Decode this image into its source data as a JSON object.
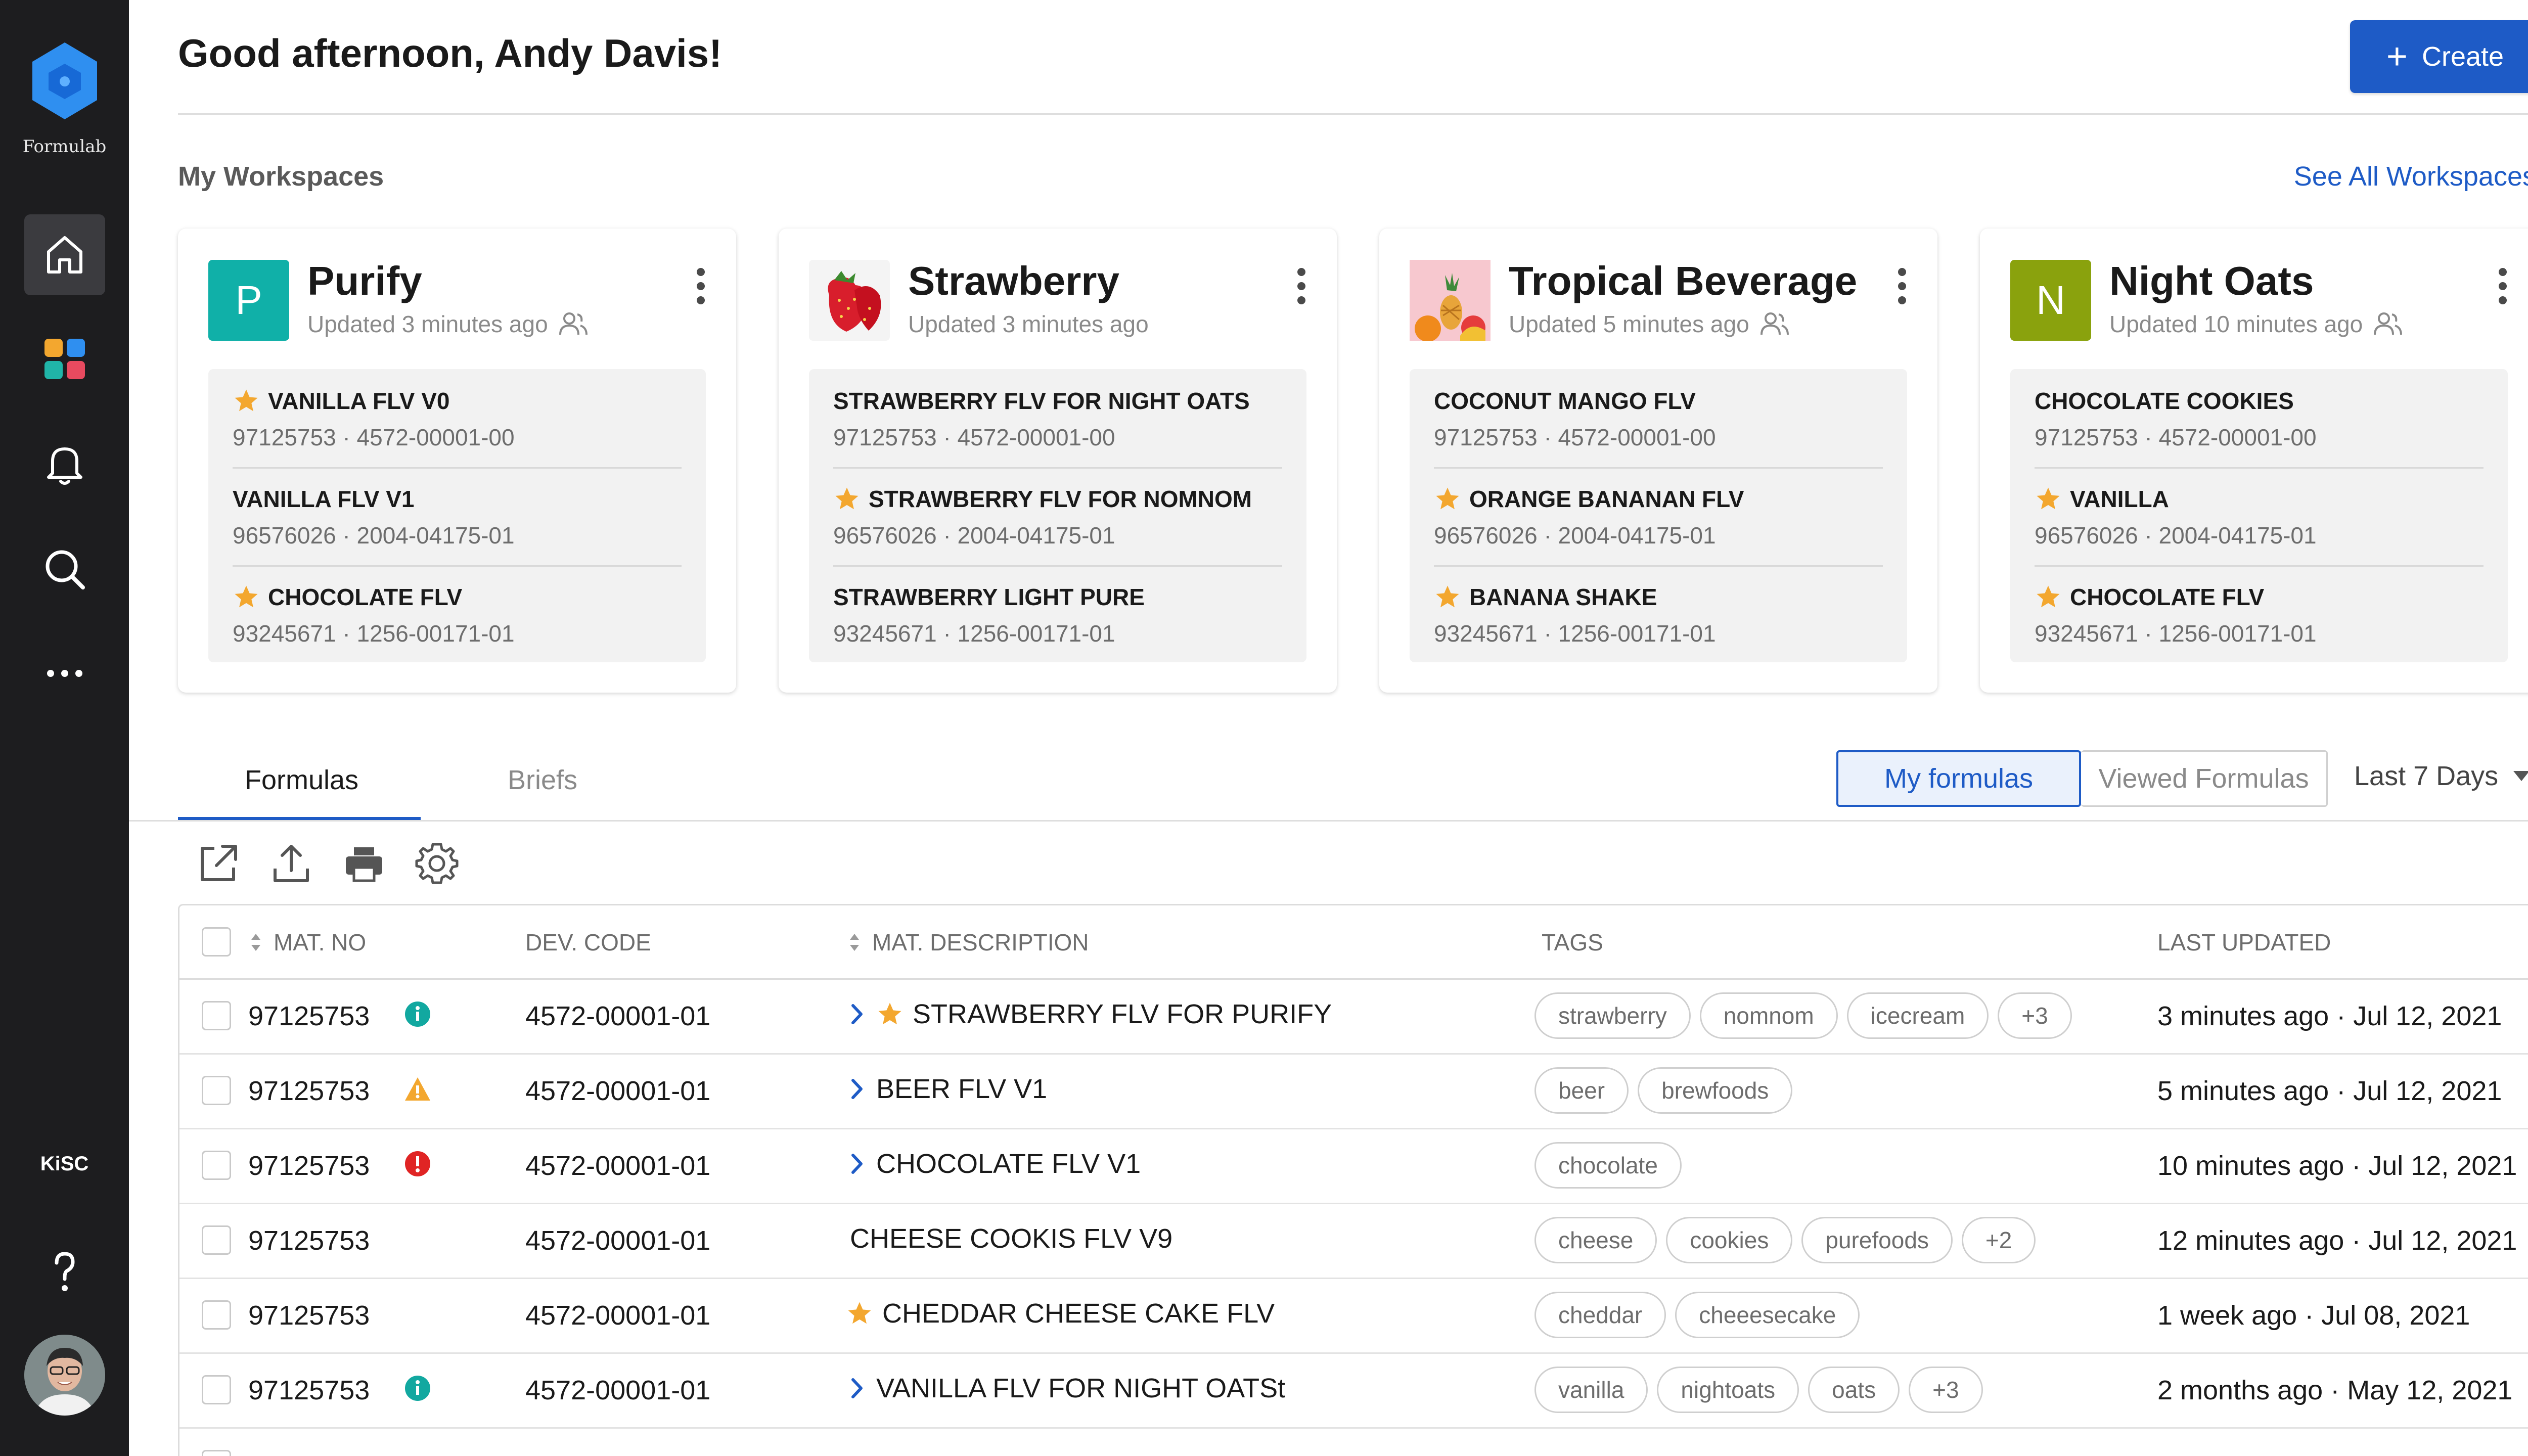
{
  "app": {
    "brand": "Formulab",
    "org": "KiSC",
    "accent": "#1e5bc6",
    "logo_color": "#2f8ff0"
  },
  "sidebar": {
    "items": [
      {
        "icon": "home-icon",
        "active": true
      },
      {
        "icon": "apps-grid-icon"
      },
      {
        "icon": "bell-icon"
      },
      {
        "icon": "search-icon"
      },
      {
        "icon": "more-icon"
      }
    ],
    "bottom": [
      {
        "label": "KiSC"
      },
      {
        "icon": "help-icon"
      },
      {
        "icon": "user-avatar"
      }
    ]
  },
  "header": {
    "greeting": "Good afternoon, Andy Davis!",
    "create_label": "Create"
  },
  "workspaces": {
    "title": "My Workspaces",
    "see_all": "See All Workspaces",
    "cards": [
      {
        "initial": "P",
        "color": "#10b0a8",
        "name": "Purify",
        "updated": "Updated 3 minutes ago",
        "shared": true,
        "items": [
          {
            "starred": true,
            "name": "VANILLA FLV V0",
            "meta": "97125753 · 4572-00001-00"
          },
          {
            "starred": false,
            "name": "VANILLA FLV V1",
            "meta": "96576026 · 2004-04175-01"
          },
          {
            "starred": true,
            "name": "CHOCOLATE FLV",
            "meta": "93245671 · 1256-00171-01"
          }
        ]
      },
      {
        "initial": "",
        "image": "strawberry-image",
        "name": "Strawberry",
        "updated": "Updated 3 minutes ago",
        "shared": false,
        "items": [
          {
            "starred": false,
            "name": "STRAWBERRY FLV FOR NIGHT OATS",
            "meta": "97125753 · 4572-00001-00"
          },
          {
            "starred": true,
            "name": "STRAWBERRY FLV FOR NOMNOM",
            "meta": "96576026 · 2004-04175-01"
          },
          {
            "starred": false,
            "name": "STRAWBERRY LIGHT PURE",
            "meta": "93245671 · 1256-00171-01"
          }
        ]
      },
      {
        "initial": "",
        "image": "tropical-fruit-image",
        "name": "Tropical Beverage",
        "updated": "Updated 5 minutes ago",
        "shared": true,
        "items": [
          {
            "starred": false,
            "name": "COCONUT MANGO FLV",
            "meta": "97125753 · 4572-00001-00"
          },
          {
            "starred": true,
            "name": "ORANGE BANANAN FLV",
            "meta": "96576026 · 2004-04175-01"
          },
          {
            "starred": true,
            "name": "BANANA SHAKE",
            "meta": "93245671 · 1256-00171-01"
          }
        ]
      },
      {
        "initial": "N",
        "color": "#8aa20d",
        "name": "Night Oats",
        "updated": "Updated 10 minutes ago",
        "shared": true,
        "items": [
          {
            "starred": false,
            "name": "CHOCOLATE COOKIES",
            "meta": "97125753 · 4572-00001-00"
          },
          {
            "starred": true,
            "name": "VANILLA",
            "meta": "96576026 · 2004-04175-01"
          },
          {
            "starred": true,
            "name": "CHOCOLATE FLV",
            "meta": "93245671 · 1256-00171-01"
          }
        ]
      }
    ]
  },
  "tabs": [
    {
      "label": "Formulas",
      "active": true
    },
    {
      "label": "Briefs",
      "active": false
    }
  ],
  "filters": {
    "my": "My formulas",
    "viewed": "Viewed Formulas",
    "range": "Last 7 Days"
  },
  "toolbar": [
    "open-external-icon",
    "upload-icon",
    "print-icon",
    "settings-icon"
  ],
  "table": {
    "columns": {
      "mat_no": "MAT. NO",
      "dev_code": "DEV. CODE",
      "desc": "MAT. DESCRIPTION",
      "tags": "TAGS",
      "updated": "LAST UPDATED"
    },
    "rows": [
      {
        "mat": "97125753",
        "status": "info",
        "dev": "4572-00001-01",
        "expand": true,
        "starred": true,
        "desc": "STRAWBERRY FLV FOR PURIFY",
        "tags": [
          "strawberry",
          "nomnom",
          "icecream",
          "+3"
        ],
        "updated": "3 minutes ago · Jul 12, 2021"
      },
      {
        "mat": "97125753",
        "status": "warning",
        "dev": "4572-00001-01",
        "expand": true,
        "starred": false,
        "desc": "BEER FLV V1",
        "tags": [
          "beer",
          "brewfoods"
        ],
        "updated": "5 minutes ago · Jul 12, 2021"
      },
      {
        "mat": "97125753",
        "status": "error",
        "dev": "4572-00001-01",
        "expand": true,
        "starred": false,
        "desc": "CHOCOLATE FLV V1",
        "tags": [
          "chocolate"
        ],
        "updated": "10 minutes ago · Jul 12, 2021"
      },
      {
        "mat": "97125753",
        "status": "",
        "dev": "4572-00001-01",
        "expand": false,
        "starred": false,
        "desc": "CHEESE COOKIS FLV V9",
        "tags": [
          "cheese",
          "cookies",
          "purefoods",
          "+2"
        ],
        "updated": "12 minutes ago · Jul 12, 2021"
      },
      {
        "mat": "97125753",
        "status": "",
        "dev": "4572-00001-01",
        "expand": false,
        "starred": true,
        "desc": "CHEDDAR CHEESE CAKE FLV",
        "tags": [
          "cheddar",
          "cheeesecake"
        ],
        "updated": "1 week ago · Jul 08, 2021"
      },
      {
        "mat": "97125753",
        "status": "info",
        "dev": "4572-00001-01",
        "expand": true,
        "starred": false,
        "desc": "VANILLA FLV FOR NIGHT OATSt",
        "tags": [
          "vanilla",
          "nightoats",
          "oats",
          "+3"
        ],
        "updated": "2 months ago · May 12, 2021"
      }
    ]
  }
}
